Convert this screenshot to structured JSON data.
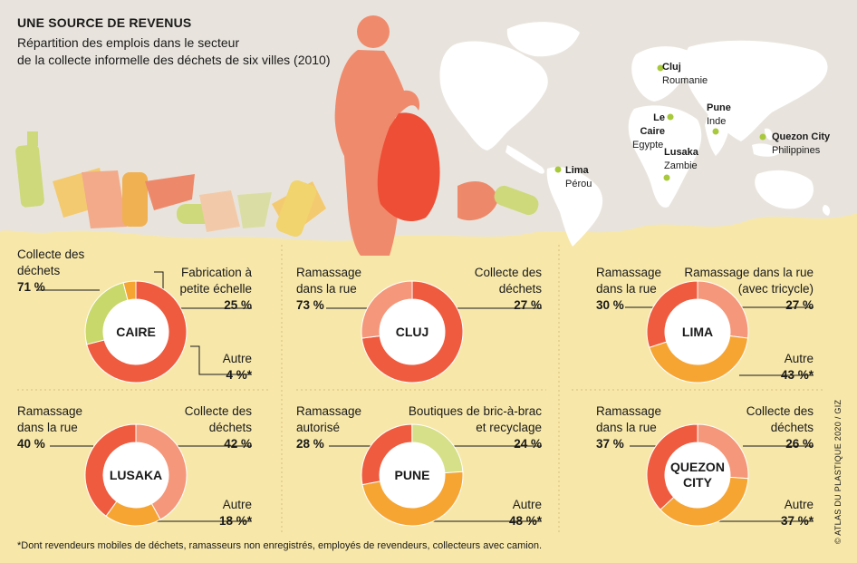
{
  "header": {
    "title": "UNE SOURCE DE REVENUS",
    "subtitle_line1": "Répartition des emplois dans le secteur",
    "subtitle_line2": "de la collecte informelle des déchets de six villes (2010)"
  },
  "map": {
    "cities": [
      {
        "name": "Cluj",
        "country": "Roumanie"
      },
      {
        "name": "Le Caire",
        "country": "Egypte"
      },
      {
        "name": "Lusaka",
        "country": "Zambie"
      },
      {
        "name": "Pune",
        "country": "Inde"
      },
      {
        "name": "Quezon City",
        "country": "Philippines"
      },
      {
        "name": "Lima",
        "country": "Pérou"
      }
    ]
  },
  "colors": {
    "background": "#f7e7a9",
    "sky": "#e8e4dd",
    "continents": "#ffffff",
    "collecte": "#ee5b3f",
    "ramassage": "#f4977a",
    "tricycle": "#f4977a",
    "fabrication": "#c9d86a",
    "boutiques": "#d6e089",
    "autre": "#f6a533",
    "city_dot": "#a9c93d"
  },
  "chart_data": [
    {
      "type": "pie",
      "title": "CAIRE",
      "slices": [
        {
          "label": "Collecte des déchets",
          "value": 71,
          "display": "71 %",
          "color": "#ee5b3f"
        },
        {
          "label": "Fabrication à petite échelle",
          "value": 25,
          "display": "25 %",
          "color": "#c9d86a"
        },
        {
          "label": "Autre",
          "value": 4,
          "display": "4 %*",
          "color": "#f6a533"
        }
      ]
    },
    {
      "type": "pie",
      "title": "CLUJ",
      "slices": [
        {
          "label": "Ramassage dans la rue",
          "value": 73,
          "display": "73 %",
          "color": "#ee5b3f"
        },
        {
          "label": "Collecte des déchets",
          "value": 27,
          "display": "27 %",
          "color": "#f4977a"
        }
      ]
    },
    {
      "type": "pie",
      "title": "LIMA",
      "slices": [
        {
          "label": "Ramassage dans la rue",
          "value": 30,
          "display": "30 %",
          "color": "#ee5b3f"
        },
        {
          "label": "Ramassage dans la rue (avec tricycle)",
          "value": 27,
          "display": "27 %",
          "color": "#f4977a"
        },
        {
          "label": "Autre",
          "value": 43,
          "display": "43 %*",
          "color": "#f6a533"
        }
      ]
    },
    {
      "type": "pie",
      "title": "LUSAKA",
      "slices": [
        {
          "label": "Ramassage dans la rue",
          "value": 40,
          "display": "40 %",
          "color": "#ee5b3f"
        },
        {
          "label": "Collecte des déchets",
          "value": 42,
          "display": "42 %",
          "color": "#f4977a"
        },
        {
          "label": "Autre",
          "value": 18,
          "display": "18 %*",
          "color": "#f6a533"
        }
      ]
    },
    {
      "type": "pie",
      "title": "PUNE",
      "slices": [
        {
          "label": "Ramassage autorisé",
          "value": 28,
          "display": "28 %",
          "color": "#ee5b3f"
        },
        {
          "label": "Boutiques de bric-à-brac et recyclage",
          "value": 24,
          "display": "24 %",
          "color": "#d6e089"
        },
        {
          "label": "Autre",
          "value": 48,
          "display": "48 %*",
          "color": "#f6a533"
        }
      ]
    },
    {
      "type": "pie",
      "title": "QUEZON CITY",
      "slices": [
        {
          "label": "Ramassage dans la rue",
          "value": 37,
          "display": "37 %",
          "color": "#ee5b3f"
        },
        {
          "label": "Collecte des déchets",
          "value": 26,
          "display": "26 %",
          "color": "#f4977a"
        },
        {
          "label": "Autre",
          "value": 37,
          "display": "37 %*",
          "color": "#f6a533"
        }
      ]
    }
  ],
  "labels": {
    "caire": {
      "l1": "Collecte des",
      "l2": "déchets",
      "fab1": "Fabrication à",
      "fab2": "petite échelle",
      "autre": "Autre"
    },
    "cluj": {
      "l1": "Ramassage",
      "l2": "dans la rue",
      "r1": "Collecte des",
      "r2": "déchets"
    },
    "lima": {
      "l1": "Ramassage",
      "l2": "dans la rue",
      "r1": "Ramassage dans la rue",
      "r2": "(avec tricycle)",
      "autre": "Autre"
    },
    "lusaka": {
      "l1": "Ramassage",
      "l2": "dans la rue",
      "r1": "Collecte des",
      "r2": "déchets",
      "autre": "Autre"
    },
    "pune": {
      "l1": "Ramassage",
      "l2": "autorisé",
      "r1": "Boutiques de bric-à-brac",
      "r2": "et recyclage",
      "autre": "Autre"
    },
    "quezon": {
      "l1": "Ramassage",
      "l2": "dans la rue",
      "r1": "Collecte des",
      "r2": "déchets",
      "autre": "Autre",
      "center1": "QUEZON",
      "center2": "CITY"
    }
  },
  "footnote": "*Dont revendeurs mobiles de déchets, ramasseurs non enregistrés, employés de revendeurs, collecteurs avec camion.",
  "credit": "© ATLAS DU PLASTIQUE 2020 / GIZ"
}
